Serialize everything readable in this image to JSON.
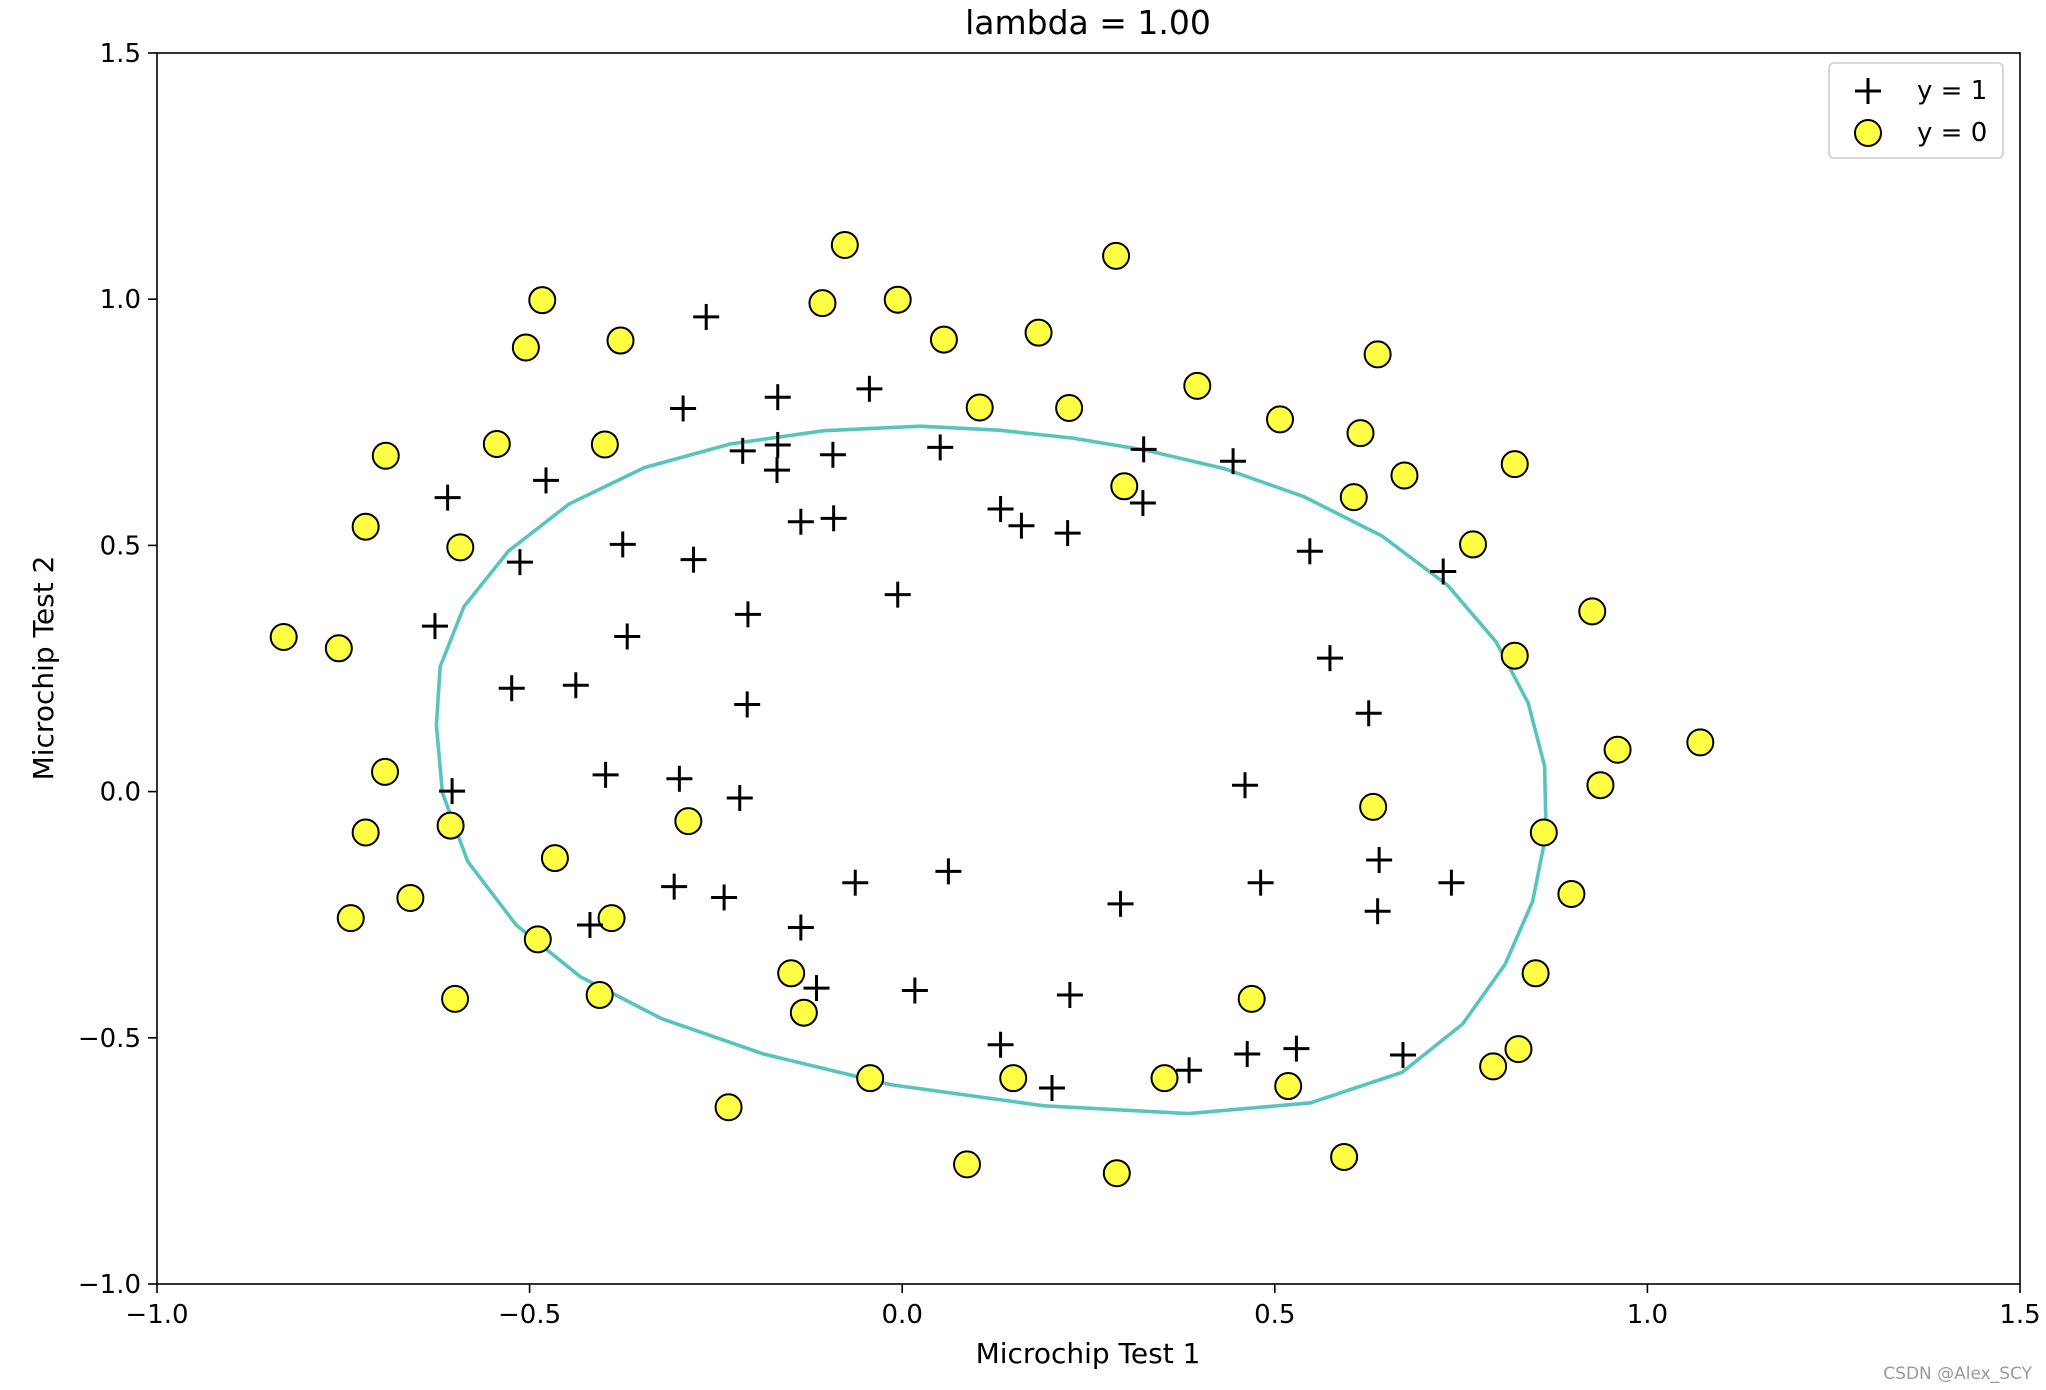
{
  "chart_data": {
    "type": "scatter",
    "title": "lambda = 1.00",
    "xlabel": "Microchip Test 1",
    "ylabel": "Microchip Test 2",
    "xlim": [
      -1.0,
      1.5
    ],
    "ylim": [
      -1.0,
      1.5
    ],
    "xticks": [
      -1.0,
      -0.5,
      0.0,
      0.5,
      1.0,
      1.5
    ],
    "yticks": [
      -1.0,
      -0.5,
      0.0,
      0.5,
      1.0,
      1.5
    ],
    "xtick_labels": [
      "−1.0",
      "−0.5",
      "0.0",
      "0.5",
      "1.0",
      "1.5"
    ],
    "ytick_labels": [
      "−1.0",
      "−0.5",
      "0.0",
      "0.5",
      "1.0",
      "1.5"
    ],
    "grid": false,
    "legend_position": "top-right",
    "colors": {
      "positive": "#000000",
      "negative_fill": "#ffff44",
      "negative_edge": "#000000",
      "boundary": "#58c4bf"
    },
    "series": [
      {
        "name": "y = 1",
        "marker": "plus",
        "points": [
          [
            0.051,
            0.699
          ],
          [
            -0.093,
            0.684
          ],
          [
            -0.214,
            0.692
          ],
          [
            -0.375,
            0.502
          ],
          [
            -0.513,
            0.466
          ],
          [
            -0.524,
            0.21
          ],
          [
            -0.398,
            0.034
          ],
          [
            -0.306,
            -0.193
          ],
          [
            0.017,
            -0.404
          ],
          [
            0.132,
            -0.514
          ],
          [
            0.385,
            -0.566
          ],
          [
            0.529,
            -0.522
          ],
          [
            0.638,
            -0.243
          ],
          [
            0.737,
            -0.185
          ],
          [
            0.547,
            0.488
          ],
          [
            0.323,
            0.586
          ],
          [
            0.132,
            0.574
          ],
          [
            -0.006,
            0.4
          ],
          [
            -0.208,
            0.177
          ],
          [
            -0.207,
            0.36
          ],
          [
            -0.28,
            0.471
          ],
          [
            -0.369,
            0.315
          ],
          [
            -0.438,
            0.216
          ],
          [
            -0.604,
            0.001
          ],
          [
            -0.419,
            -0.271
          ],
          [
            -0.239,
            -0.215
          ],
          [
            -0.063,
            -0.185
          ],
          [
            0.062,
            -0.162
          ],
          [
            0.225,
            -0.413
          ],
          [
            0.293,
            -0.228
          ],
          [
            0.463,
            -0.533
          ],
          [
            0.481,
            -0.185
          ],
          [
            0.672,
            -0.535
          ],
          [
            0.64,
            -0.139
          ],
          [
            0.626,
            0.159
          ],
          [
            0.574,
            0.271
          ],
          [
            0.726,
            0.447
          ],
          [
            0.444,
            0.671
          ],
          [
            0.324,
            0.695
          ],
          [
            0.222,
            0.525
          ],
          [
            0.16,
            0.54
          ],
          [
            -0.092,
            0.555
          ],
          [
            -0.136,
            0.548
          ],
          [
            -0.168,
            0.653
          ],
          [
            -0.167,
            0.704
          ],
          [
            -0.167,
            0.801
          ],
          [
            -0.294,
            0.778
          ],
          [
            -0.263,
            0.964
          ],
          [
            -0.044,
            0.818
          ],
          [
            -0.478,
            0.632
          ],
          [
            -0.61,
            0.597
          ],
          [
            -0.627,
            0.336
          ],
          [
            -0.299,
            0.026
          ],
          [
            -0.218,
            -0.013
          ],
          [
            -0.136,
            -0.276
          ],
          [
            -0.115,
            -0.399
          ],
          [
            0.201,
            -0.602
          ],
          [
            0.46,
            0.013
          ]
        ]
      },
      {
        "name": "y = 0",
        "marker": "circle",
        "points": [
          [
            -0.077,
            1.11
          ],
          [
            0.287,
            1.088
          ],
          [
            -0.107,
            0.992
          ],
          [
            -0.006,
            0.999
          ],
          [
            -0.483,
            0.998
          ],
          [
            -0.378,
            0.916
          ],
          [
            -0.505,
            0.902
          ],
          [
            0.056,
            0.918
          ],
          [
            0.183,
            0.932
          ],
          [
            0.638,
            0.888
          ],
          [
            0.396,
            0.824
          ],
          [
            0.104,
            0.78
          ],
          [
            0.224,
            0.779
          ],
          [
            0.507,
            0.756
          ],
          [
            0.615,
            0.728
          ],
          [
            -0.544,
            0.706
          ],
          [
            -0.399,
            0.705
          ],
          [
            -0.693,
            0.682
          ],
          [
            0.822,
            0.665
          ],
          [
            0.674,
            0.642
          ],
          [
            0.298,
            0.62
          ],
          [
            0.606,
            0.598
          ],
          [
            -0.72,
            0.538
          ],
          [
            -0.593,
            0.496
          ],
          [
            0.766,
            0.502
          ],
          [
            0.926,
            0.366
          ],
          [
            -0.83,
            0.314
          ],
          [
            -0.756,
            0.291
          ],
          [
            0.822,
            0.276
          ],
          [
            1.071,
            0.1
          ],
          [
            0.96,
            0.085
          ],
          [
            0.937,
            0.013
          ],
          [
            -0.694,
            0.04
          ],
          [
            0.632,
            -0.031
          ],
          [
            -0.287,
            -0.06
          ],
          [
            -0.606,
            -0.069
          ],
          [
            -0.72,
            -0.083
          ],
          [
            0.861,
            -0.083
          ],
          [
            -0.466,
            -0.135
          ],
          [
            -0.66,
            -0.216
          ],
          [
            0.898,
            -0.208
          ],
          [
            -0.74,
            -0.257
          ],
          [
            -0.39,
            -0.257
          ],
          [
            -0.489,
            -0.3
          ],
          [
            -0.149,
            -0.369
          ],
          [
            0.85,
            -0.369
          ],
          [
            -0.406,
            -0.413
          ],
          [
            -0.6,
            -0.421
          ],
          [
            0.469,
            -0.421
          ],
          [
            -0.132,
            -0.449
          ],
          [
            0.827,
            -0.523
          ],
          [
            -0.043,
            -0.582
          ],
          [
            0.149,
            -0.582
          ],
          [
            0.352,
            -0.582
          ],
          [
            0.518,
            -0.598
          ],
          [
            0.793,
            -0.558
          ],
          [
            -0.233,
            -0.641
          ],
          [
            0.593,
            -0.742
          ],
          [
            0.087,
            -0.757
          ],
          [
            0.288,
            -0.775
          ]
        ]
      }
    ],
    "decision_boundary": {
      "name": "",
      "points": [
        [
          0.024,
          0.742
        ],
        [
          0.13,
          0.734
        ],
        [
          0.229,
          0.718
        ],
        [
          0.328,
          0.693
        ],
        [
          0.432,
          0.656
        ],
        [
          0.539,
          0.599
        ],
        [
          0.644,
          0.519
        ],
        [
          0.732,
          0.419
        ],
        [
          0.797,
          0.304
        ],
        [
          0.84,
          0.18
        ],
        [
          0.862,
          0.052
        ],
        [
          0.864,
          -0.086
        ],
        [
          0.846,
          -0.223
        ],
        [
          0.809,
          -0.351
        ],
        [
          0.752,
          -0.472
        ],
        [
          0.671,
          -0.57
        ],
        [
          0.548,
          -0.632
        ],
        [
          0.384,
          -0.654
        ],
        [
          0.19,
          -0.638
        ],
        [
          -0.016,
          -0.595
        ],
        [
          -0.186,
          -0.533
        ],
        [
          -0.323,
          -0.461
        ],
        [
          -0.432,
          -0.376
        ],
        [
          -0.518,
          -0.271
        ],
        [
          -0.583,
          -0.142
        ],
        [
          -0.617,
          -0.002
        ],
        [
          -0.625,
          0.135
        ],
        [
          -0.62,
          0.254
        ],
        [
          -0.588,
          0.376
        ],
        [
          -0.528,
          0.489
        ],
        [
          -0.447,
          0.584
        ],
        [
          -0.346,
          0.658
        ],
        [
          -0.231,
          0.706
        ],
        [
          -0.105,
          0.733
        ],
        [
          0.024,
          0.742
        ]
      ]
    },
    "legend": [
      {
        "label": "y = 1",
        "marker": "plus"
      },
      {
        "label": "y = 0",
        "marker": "circle"
      }
    ]
  },
  "watermark": "CSDN @Alex_SCY"
}
